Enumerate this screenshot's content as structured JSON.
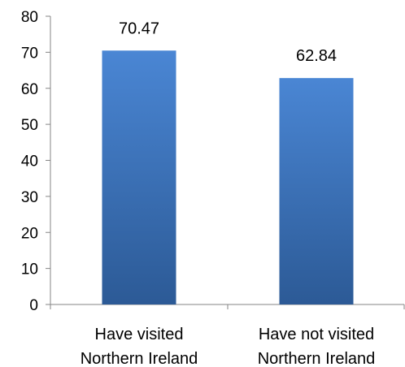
{
  "chart_data": {
    "type": "bar",
    "categories": [
      [
        "Have visited",
        "Northern Ireland"
      ],
      [
        "Have not visited",
        "Northern Ireland"
      ]
    ],
    "values": [
      70.47,
      62.84
    ],
    "data_labels": [
      "70.47",
      "62.84"
    ],
    "ylim": [
      0,
      80
    ],
    "yticks": [
      0,
      10,
      20,
      30,
      40,
      50,
      60,
      70,
      80
    ],
    "grid": false,
    "legend": "none",
    "colors": {
      "bar_top": "#4a86d4",
      "bar_bottom": "#2c5a96",
      "axis": "#868686",
      "text": "#000000"
    }
  }
}
